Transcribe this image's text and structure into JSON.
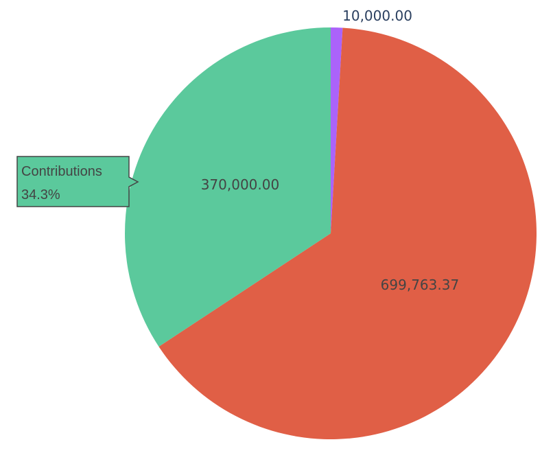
{
  "chart_data": {
    "type": "pie",
    "slices": [
      {
        "value": 10000.0,
        "text": "10,000.00",
        "color": "#ab63fa",
        "text_position": "outside"
      },
      {
        "value": 699763.37,
        "text": "699,763.37",
        "color": "#e05f46",
        "text_position": "inside"
      },
      {
        "value": 370000.0,
        "text": "370,000.00",
        "color": "#5bc99c",
        "text_position": "inside"
      }
    ],
    "direction": "clockwise",
    "start": "top",
    "hover": {
      "slice_index": 2,
      "label": "Contributions",
      "percent": "34.3%",
      "bg_color": "#5bc99c",
      "border_color": "#444444"
    }
  }
}
